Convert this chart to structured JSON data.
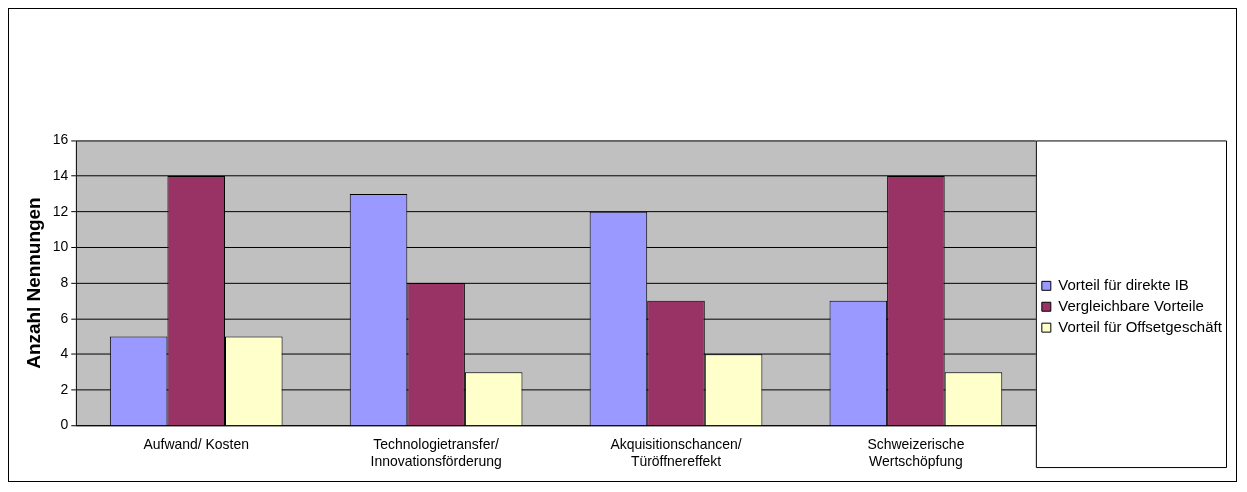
{
  "chart_data": {
    "type": "bar",
    "ylabel": "Anzahl Nennungen",
    "categories": [
      "Aufwand/ Kosten",
      "Technologietransfer/\nInnovationsförderung",
      "Akquisitionschancen/\nTüröffnereffekt",
      "Schweizerische\nWertschöpfung"
    ],
    "series": [
      {
        "name": "Vorteil für direkte IB",
        "color": "#9999ff",
        "values": [
          5,
          13,
          12,
          7
        ]
      },
      {
        "name": "Vergleichbare Vorteile",
        "color": "#993366",
        "values": [
          14,
          8,
          7,
          14
        ]
      },
      {
        "name": "Vorteil für Offsetgeschäft",
        "color": "#ffffcc",
        "values": [
          5,
          3,
          4,
          3
        ]
      }
    ],
    "ylim": [
      0,
      16
    ],
    "yticks": [
      0,
      2,
      4,
      6,
      8,
      10,
      12,
      14,
      16
    ],
    "grid": "y",
    "legend": "right"
  }
}
